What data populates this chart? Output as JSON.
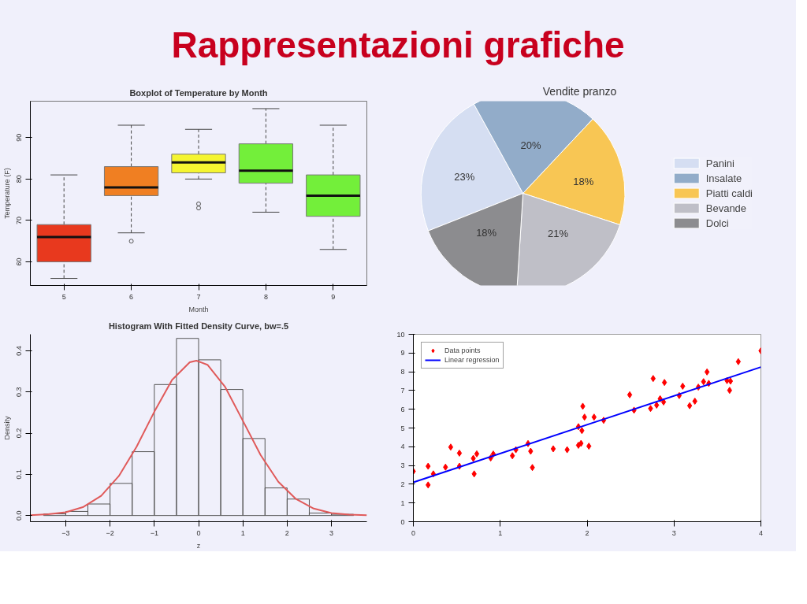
{
  "chart_data": [
    {
      "type": "other",
      "title": "Rappresentazioni grafiche"
    },
    {
      "type": "box",
      "title": "Boxplot of Temperature by Month",
      "xlabel": "Month",
      "ylabel": "Temperature (F)",
      "categories": [
        "5",
        "6",
        "7",
        "8",
        "9"
      ],
      "colors": [
        "#e8391e",
        "#f07f22",
        "#f5f531",
        "#73ef3a",
        "#73ef3a"
      ],
      "boxes": [
        {
          "low": 56,
          "q1": 60,
          "median": 66,
          "q3": 69,
          "high": 81
        },
        {
          "low": 67,
          "q1": 76,
          "median": 78,
          "q3": 83,
          "high": 93,
          "outliers": [
            65
          ]
        },
        {
          "low": 80,
          "q1": 81.5,
          "median": 84,
          "q3": 86,
          "high": 92,
          "outliers": [
            73,
            74
          ]
        },
        {
          "low": 72,
          "q1": 79,
          "median": 82,
          "q3": 88.5,
          "high": 97
        },
        {
          "low": 63,
          "q1": 71,
          "median": 76,
          "q3": 81,
          "high": 93
        }
      ],
      "ylim": [
        54.3,
        98.8
      ],
      "yticks": [
        60,
        70,
        80,
        90
      ],
      "grid": false
    },
    {
      "type": "pie",
      "title": "Vendite pranzo",
      "categories": [
        "Panini",
        "Insalate",
        "Piatti caldi",
        "Bevande",
        "Dolci"
      ],
      "values": [
        23,
        20,
        18,
        21,
        18
      ],
      "value_labels": [
        "23%",
        "20%",
        "18%",
        "21%",
        "18%"
      ],
      "colors": [
        "#d5def2",
        "#92acc9",
        "#f8c654",
        "#bfbfc7",
        "#8c8c8f"
      ],
      "legend": "right"
    },
    {
      "type": "histogram",
      "title": "Histogram With Fitted Density Curve, bw=.5",
      "xlabel": "z",
      "ylabel": "Density",
      "bins": [
        -3.5,
        -3,
        -2.5,
        -2,
        -1.5,
        -1,
        -0.5,
        0,
        0.5,
        1,
        1.5,
        2,
        2.5,
        3,
        3.5
      ],
      "values": [
        0.004,
        0.01,
        0.028,
        0.078,
        0.155,
        0.318,
        0.43,
        0.378,
        0.306,
        0.187,
        0.067,
        0.04,
        0.006,
        0.003
      ],
      "series": [
        {
          "type": "line",
          "color": "#e05a5a",
          "x": [
            -3.8,
            -3.4,
            -3.0,
            -2.6,
            -2.2,
            -1.8,
            -1.4,
            -1.0,
            -0.6,
            -0.2,
            -0.05,
            0.2,
            0.6,
            1.0,
            1.4,
            1.8,
            2.2,
            2.6,
            3.0,
            3.4,
            3.8
          ],
          "values": [
            0.001,
            0.003,
            0.008,
            0.021,
            0.048,
            0.096,
            0.167,
            0.252,
            0.329,
            0.372,
            0.376,
            0.366,
            0.312,
            0.23,
            0.147,
            0.082,
            0.04,
            0.017,
            0.006,
            0.002,
            0.001
          ]
        }
      ],
      "xlim": [
        -3.8,
        3.8
      ],
      "xticks": [
        -3,
        -2,
        -1,
        0,
        1,
        2,
        3
      ],
      "ylim": [
        -0.015,
        0.44
      ],
      "yticks": [
        {
          "value": 0,
          "label": "0.0"
        },
        0.1,
        0.2,
        0.3,
        0.4
      ],
      "grid": false
    },
    {
      "type": "scatter",
      "series": [
        {
          "name": "Data points",
          "type": "scatter",
          "marker": "diamond",
          "color": "#ff0000",
          "x": [
            0,
            0.17,
            0.17,
            0.23,
            0.37,
            0.43,
            0.53,
            0.53,
            0.69,
            0.73,
            0.7,
            0.89,
            0.92,
            1.14,
            1.18,
            1.32,
            1.35,
            1.37,
            1.61,
            1.77,
            1.9,
            1.9,
            1.93,
            1.94,
            1.95,
            1.97,
            2.02,
            2.08,
            2.19,
            2.49,
            2.54,
            2.73,
            2.76,
            2.8,
            2.84,
            2.88,
            2.89,
            3.06,
            3.1,
            3.18,
            3.24,
            3.28,
            3.34,
            3.38,
            3.4,
            3.61,
            3.64,
            3.65,
            3.74,
            4.0
          ],
          "values": [
            2.69,
            2.96,
            1.96,
            2.55,
            2.91,
            3.98,
            3.66,
            2.96,
            3.38,
            3.62,
            2.55,
            3.4,
            3.61,
            3.52,
            3.84,
            4.17,
            3.76,
            2.89,
            3.89,
            3.84,
            5.07,
            4.08,
            4.18,
            4.86,
            6.16,
            5.58,
            4.03,
            5.58,
            5.41,
            6.77,
            5.95,
            6.04,
            7.64,
            6.22,
            6.56,
            6.39,
            7.43,
            6.73,
            7.23,
            6.19,
            6.43,
            7.18,
            7.47,
            7.99,
            7.38,
            7.53,
            7.01,
            7.5,
            8.54,
            9.12
          ]
        },
        {
          "name": "Linear regression",
          "type": "line",
          "color": "#0000ff",
          "x": [
            0,
            4
          ],
          "values": [
            2.1,
            8.25
          ]
        }
      ],
      "xlim": [
        0,
        4
      ],
      "xticks": [
        0,
        1,
        2,
        3,
        4
      ],
      "ylim": [
        0,
        10
      ],
      "yticks": [
        0,
        1,
        2,
        3,
        4,
        5,
        6,
        7,
        8,
        9,
        10
      ],
      "grid": false,
      "legend": "top left"
    }
  ]
}
